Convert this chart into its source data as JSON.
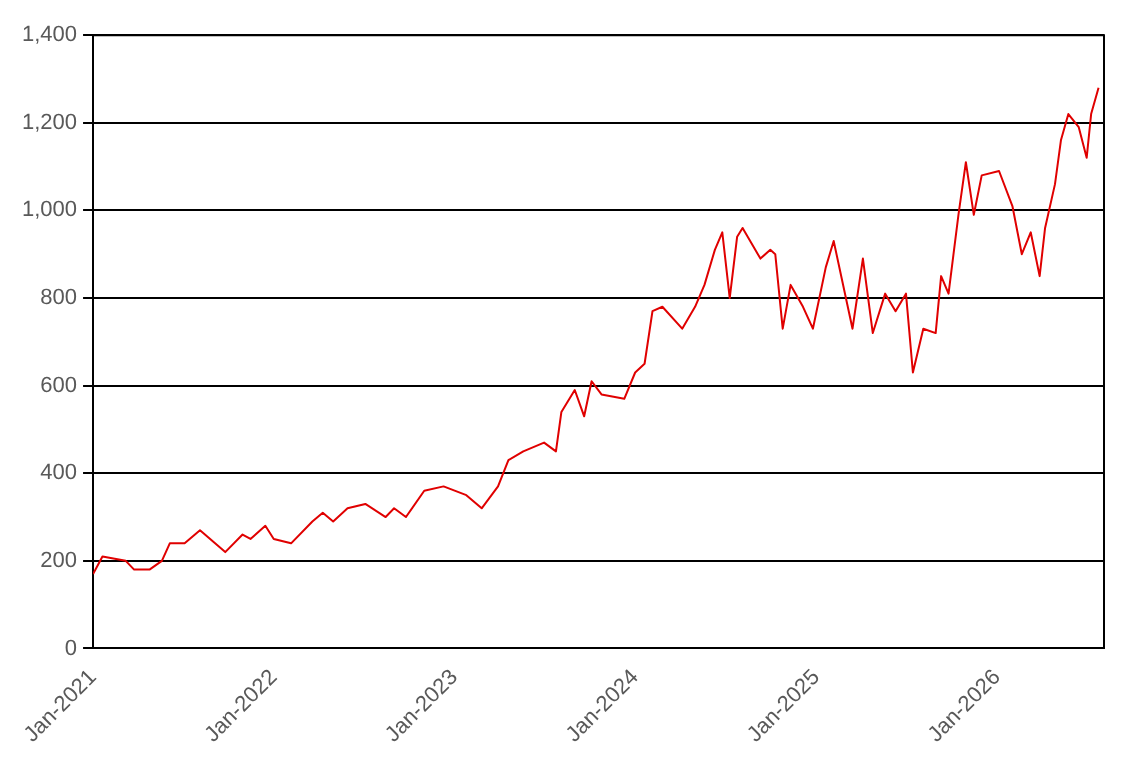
{
  "chart_data": {
    "type": "line",
    "x": [
      "2021-01-01",
      "2021-01-20",
      "2021-03-08",
      "2021-03-25",
      "2021-04-25",
      "2021-05-20",
      "2021-06-05",
      "2021-07-05",
      "2021-08-05",
      "2021-09-25",
      "2021-10-30",
      "2021-11-15",
      "2021-12-15",
      "2022-01-01",
      "2022-02-05",
      "2022-03-20",
      "2022-04-10",
      "2022-05-01",
      "2022-05-30",
      "2022-07-05",
      "2022-08-15",
      "2022-09-01",
      "2022-09-25",
      "2022-11-01",
      "2022-12-10",
      "2023-01-25",
      "2023-02-25",
      "2023-03-30",
      "2023-04-20",
      "2023-05-20",
      "2023-07-01",
      "2023-07-25",
      "2023-08-05",
      "2023-09-01",
      "2023-09-20",
      "2023-10-05",
      "2023-10-25",
      "2023-12-10",
      "2024-01-01",
      "2024-01-20",
      "2024-02-05",
      "2024-02-25",
      "2024-04-05",
      "2024-05-01",
      "2024-05-20",
      "2024-06-10",
      "2024-06-25",
      "2024-07-10",
      "2024-07-25",
      "2024-08-05",
      "2024-09-10",
      "2024-09-30",
      "2024-10-10",
      "2024-10-25",
      "2024-11-10",
      "2024-12-05",
      "2024-12-25",
      "2025-01-20",
      "2025-02-05",
      "2025-03-15",
      "2025-04-05",
      "2025-04-25",
      "2025-05-20",
      "2025-06-10",
      "2025-07-01",
      "2025-07-15",
      "2025-08-05",
      "2025-08-30",
      "2025-09-10",
      "2025-09-25",
      "2025-10-15",
      "2025-10-30",
      "2025-11-15",
      "2025-12-01",
      "2026-01-05",
      "2026-02-01",
      "2026-02-20",
      "2026-03-10",
      "2026-03-28",
      "2026-04-08",
      "2026-04-28",
      "2026-05-10",
      "2026-05-25",
      "2026-06-15",
      "2026-07-01",
      "2026-07-10",
      "2026-07-25"
    ],
    "series": [
      {
        "color": "#e00000",
        "values": [
          170,
          210,
          200,
          180,
          180,
          200,
          240,
          240,
          270,
          220,
          260,
          250,
          280,
          250,
          240,
          290,
          310,
          290,
          320,
          330,
          300,
          320,
          300,
          360,
          370,
          350,
          320,
          370,
          430,
          450,
          470,
          450,
          540,
          590,
          530,
          610,
          580,
          570,
          630,
          650,
          770,
          780,
          730,
          780,
          830,
          910,
          950,
          800,
          940,
          960,
          890,
          910,
          900,
          730,
          830,
          780,
          730,
          870,
          930,
          730,
          890,
          720,
          810,
          770,
          810,
          630,
          730,
          720,
          850,
          810,
          990,
          1110,
          990,
          1080,
          1090,
          1010,
          900,
          950,
          850,
          960,
          1060,
          1160,
          1220,
          1190,
          1120,
          1220,
          1280
        ]
      }
    ],
    "xlim": [
      "2021-01-01",
      "2026-08-05"
    ],
    "xticks": [
      {
        "value": "2021-01-01",
        "label": "Jan-2021"
      },
      {
        "value": "2022-01-01",
        "label": "Jan-2022"
      },
      {
        "value": "2023-01-01",
        "label": "Jan-2023"
      },
      {
        "value": "2024-01-01",
        "label": "Jan-2024"
      },
      {
        "value": "2025-01-01",
        "label": "Jan-2025"
      },
      {
        "value": "2026-01-01",
        "label": "Jan-2026"
      }
    ],
    "ylim": [
      0,
      1400
    ],
    "yticks": [
      0,
      200,
      400,
      600,
      800,
      {
        "value": 1000,
        "label": "1,000"
      },
      {
        "value": 1200,
        "label": "1,200"
      },
      {
        "value": 1400,
        "label": "1,400"
      }
    ],
    "grid": "y",
    "legend": false,
    "marker": "none",
    "line_style": "solid"
  }
}
